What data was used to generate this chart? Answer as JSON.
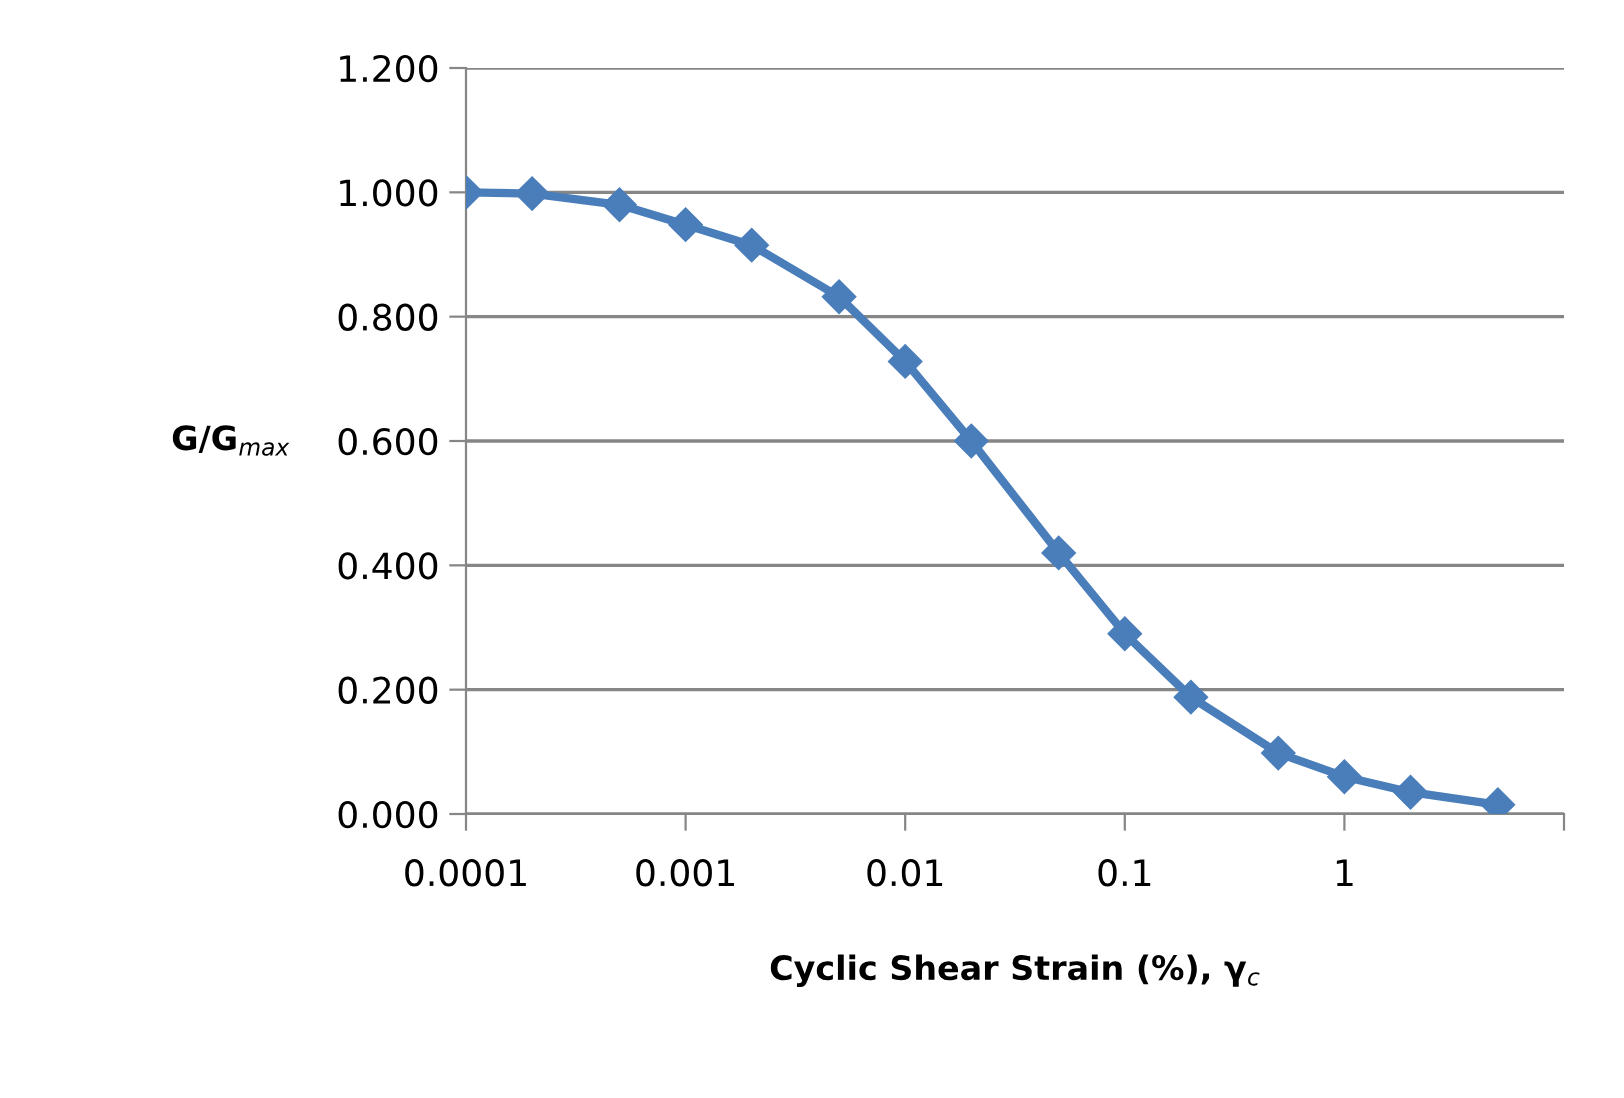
{
  "chart_data": {
    "type": "line",
    "xlabel": "Cyclic Shear Strain (%), γ$_{c}$",
    "ylabel": "G/G$_{max}$",
    "x": [
      0.0001,
      0.0002,
      0.0005,
      0.001,
      0.002,
      0.005,
      0.01,
      0.02,
      0.05,
      0.1,
      0.2,
      0.5,
      1,
      2,
      5
    ],
    "series": [
      {
        "color": "#4a7ebb",
        "values": [
          1.0,
          0.998,
          0.98,
          0.948,
          0.915,
          0.832,
          0.728,
          0.6,
          0.42,
          0.29,
          0.188,
          0.098,
          0.06,
          0.035,
          0.015
        ]
      }
    ],
    "log": "x",
    "xlim": [
      0.0001,
      10
    ],
    "xticks": [
      {
        "value": 0.0001,
        "label": "0.0001"
      },
      {
        "value": 0.001,
        "label": "0.001"
      },
      {
        "value": 0.01,
        "label": "0.01"
      },
      {
        "value": 0.1,
        "label": "0.1"
      },
      {
        "value": 1,
        "label": "1"
      },
      {
        "value": 10,
        "label": null
      }
    ],
    "ylim": [
      0,
      1.2
    ],
    "yticks": [
      {
        "value": 0,
        "label": "0.000"
      },
      {
        "value": 0.2,
        "label": "0.200"
      },
      {
        "value": 0.4,
        "label": "0.400"
      },
      {
        "value": 0.6,
        "label": "0.600"
      },
      {
        "value": 0.8,
        "label": "0.800"
      },
      {
        "value": 1.0,
        "label": "1.000"
      },
      {
        "value": 1.2,
        "label": "1.200"
      }
    ],
    "grid": "y",
    "marker": "diamond",
    "line_style": "solid",
    "legend": false
  }
}
